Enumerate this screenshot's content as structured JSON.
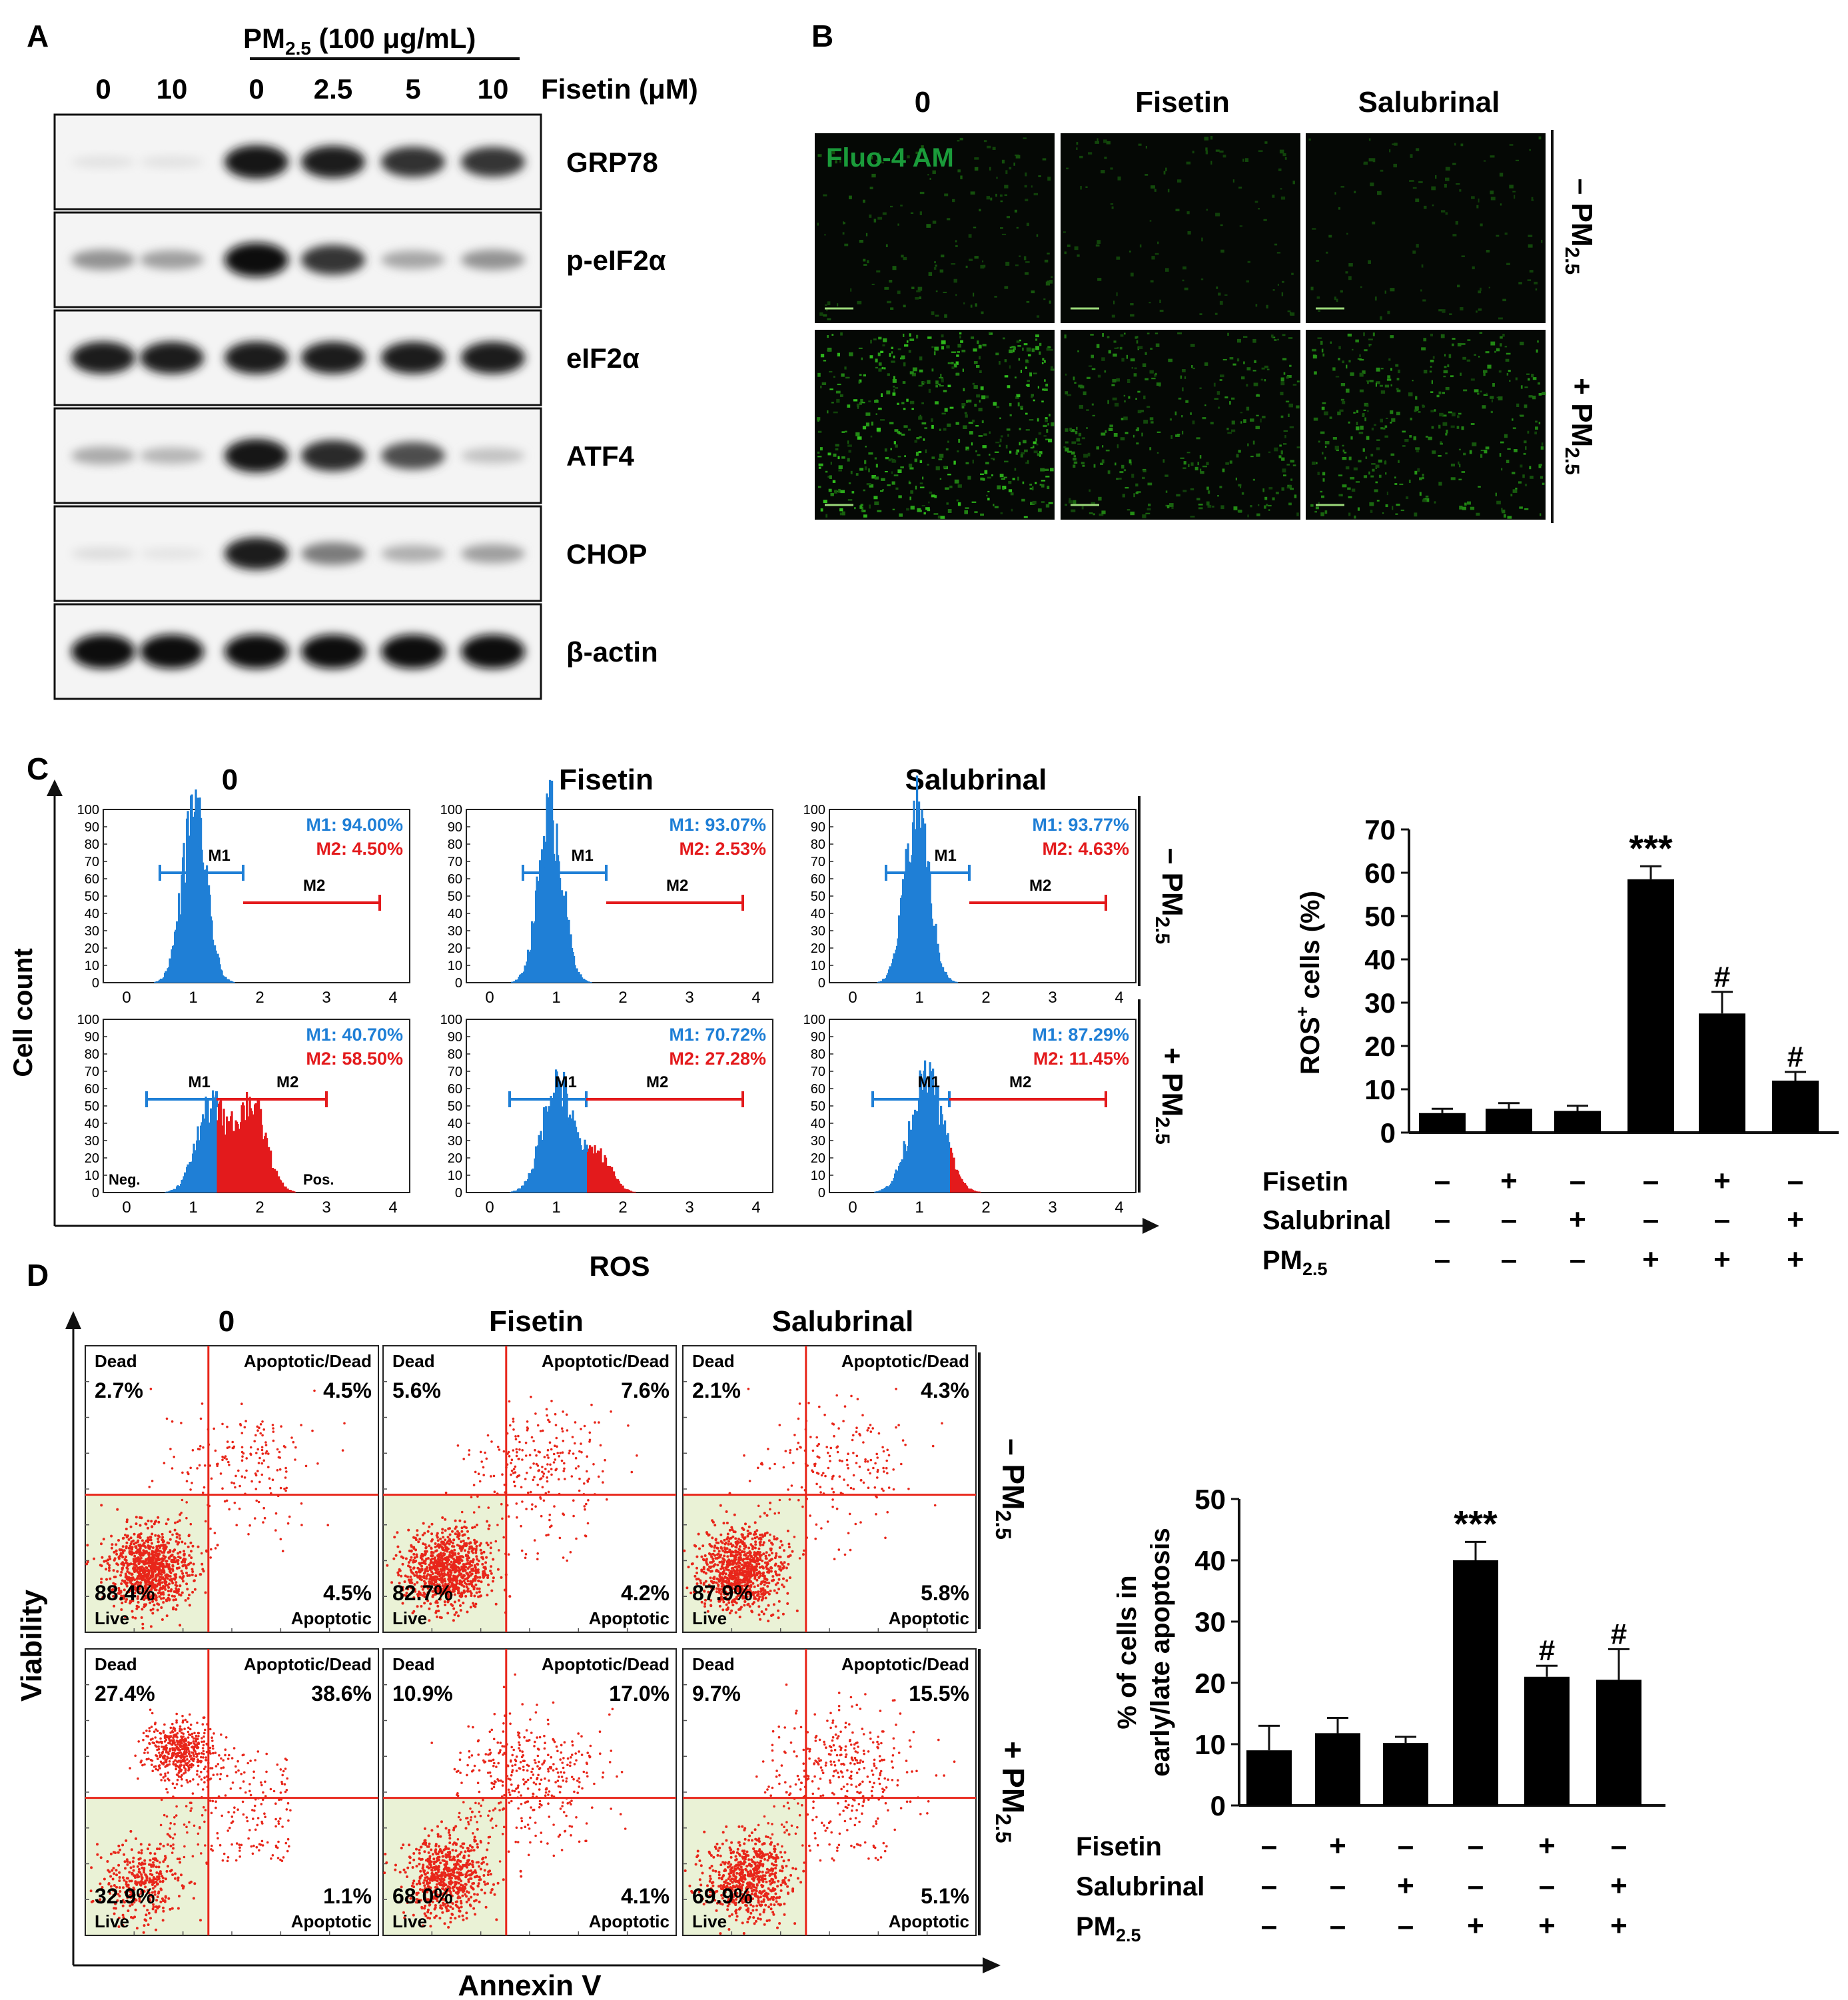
{
  "panels": {
    "A": {
      "letter": "A",
      "pm_label": "PM",
      "pm_sub": "2.5",
      "pm_conc": " (100 μg/mL)",
      "dose_label": "Fisetin (μM)",
      "lanes": [
        "0",
        "10",
        "0",
        "2.5",
        "5",
        "10"
      ],
      "blots": [
        {
          "label": "GRP78",
          "intensities": [
            0.06,
            0.06,
            0.95,
            0.9,
            0.82,
            0.8
          ]
        },
        {
          "label": "p-eIF2α",
          "intensities": [
            0.4,
            0.35,
            0.98,
            0.8,
            0.32,
            0.4
          ]
        },
        {
          "label": "eIF2α",
          "intensities": [
            0.9,
            0.9,
            0.92,
            0.9,
            0.9,
            0.9
          ]
        },
        {
          "label": "ATF4",
          "intensities": [
            0.3,
            0.25,
            0.95,
            0.85,
            0.7,
            0.2
          ]
        },
        {
          "label": "CHOP",
          "intensities": [
            0.08,
            0.05,
            0.9,
            0.5,
            0.28,
            0.35
          ]
        },
        {
          "label": "β-actin",
          "intensities": [
            0.98,
            0.98,
            0.98,
            0.98,
            0.98,
            0.98
          ]
        }
      ]
    },
    "B": {
      "letter": "B",
      "columns": [
        "0",
        "Fisetin",
        "Salubrinal"
      ],
      "stain_label": "Fluo-4 AM",
      "rows": [
        {
          "sign": "–",
          "label": "PM",
          "sub": "2.5",
          "brightness": [
            0.2,
            0.1,
            0.1
          ]
        },
        {
          "sign": "+",
          "label": "PM",
          "sub": "2.5",
          "brightness": [
            0.9,
            0.55,
            0.6
          ]
        }
      ]
    },
    "C": {
      "letter": "C",
      "columns": [
        "0",
        "Fisetin",
        "Salubrinal"
      ],
      "y_axis_label": "Cell count",
      "x_axis_label": "ROS",
      "y_ticks": [
        "0",
        "10",
        "20",
        "30",
        "40",
        "50",
        "60",
        "70",
        "80",
        "90",
        "100"
      ],
      "x_ticks": [
        "0",
        "1",
        "2",
        "3",
        "4"
      ],
      "gate_m1": "M1",
      "gate_m2": "M2",
      "neg_label": "Neg.",
      "pos_label": "Pos.",
      "row_labels": [
        {
          "sign": "–",
          "label": "PM",
          "sub": "2.5"
        },
        {
          "sign": "+",
          "label": "PM",
          "sub": "2.5"
        }
      ],
      "histograms": [
        {
          "m1": "M1: 94.00%",
          "m2": "M2: 4.50%",
          "peak": 1.0,
          "width": 0.18,
          "m2_fraction": 0.045
        },
        {
          "m1": "M1: 93.07%",
          "m2": "M2: 2.53%",
          "peak": 0.9,
          "width": 0.18,
          "m2_fraction": 0.025
        },
        {
          "m1": "M1: 93.77%",
          "m2": "M2: 4.63%",
          "peak": 0.95,
          "width": 0.18,
          "m2_fraction": 0.046
        },
        {
          "m1": "M1: 40.70%",
          "m2": "M2: 58.50%",
          "peak": 1.3,
          "width": 0.35,
          "m2_fraction": 0.585
        },
        {
          "m1": "M1: 70.72%",
          "m2": "M2: 27.28%",
          "peak": 1.05,
          "width": 0.28,
          "m2_fraction": 0.273
        },
        {
          "m1": "M1: 87.29%",
          "m2": "M2: 11.45%",
          "peak": 1.1,
          "width": 0.25,
          "m2_fraction": 0.115
        }
      ],
      "colors": {
        "m1": "#1f7fd6",
        "m2": "#e31a1c"
      }
    },
    "D": {
      "letter": "D",
      "columns": [
        "0",
        "Fisetin",
        "Salubrinal"
      ],
      "y_axis_label": "Viability",
      "x_axis_label": "Annexin V",
      "quadrant_labels": {
        "ul": "Dead",
        "ur": "Apoptotic/Dead",
        "ll": "Live",
        "lr": "Apoptotic"
      },
      "row_labels": [
        {
          "sign": "–",
          "label": "PM",
          "sub": "2.5"
        },
        {
          "sign": "+",
          "label": "PM",
          "sub": "2.5"
        }
      ],
      "plots": [
        {
          "dead": "2.7%",
          "apo_dead": "4.5%",
          "live": "88.4%",
          "apo": "4.5%"
        },
        {
          "dead": "5.6%",
          "apo_dead": "7.6%",
          "live": "82.7%",
          "apo": "4.2%"
        },
        {
          "dead": "2.1%",
          "apo_dead": "4.3%",
          "live": "87.9%",
          "apo": "5.8%"
        },
        {
          "dead": "27.4%",
          "apo_dead": "38.6%",
          "live": "32.9%",
          "apo": "1.1%"
        },
        {
          "dead": "10.9%",
          "apo_dead": "17.0%",
          "live": "68.0%",
          "apo": "4.1%"
        },
        {
          "dead": "9.7%",
          "apo_dead": "15.5%",
          "live": "69.9%",
          "apo": "5.1%"
        }
      ]
    }
  },
  "chart_data": [
    {
      "type": "bar",
      "panel": "C",
      "ylabel": "ROS",
      "ylabel_sup": "+",
      "ylabel_rest": " cells (%)",
      "ylim": [
        0,
        70
      ],
      "yticks": [
        0,
        10,
        20,
        30,
        40,
        50,
        60,
        70
      ],
      "values": [
        4.5,
        5.5,
        5.0,
        58.5,
        27.5,
        12.0
      ],
      "errors": [
        1.0,
        1.3,
        1.2,
        3.0,
        5.0,
        2.0
      ],
      "annotations": [
        "",
        "",
        "",
        "***",
        "#",
        "#"
      ],
      "treatments": [
        {
          "name": "Fisetin",
          "signs": [
            "–",
            "+",
            "–",
            "–",
            "+",
            "–"
          ]
        },
        {
          "name": "Salubrinal",
          "signs": [
            "–",
            "–",
            "+",
            "–",
            "–",
            "+"
          ]
        },
        {
          "name": "PM",
          "sub": "2.5",
          "signs": [
            "–",
            "–",
            "–",
            "+",
            "+",
            "+"
          ]
        }
      ]
    },
    {
      "type": "bar",
      "panel": "D",
      "ylabel_line1": "% of cells in",
      "ylabel_line2": "early/late apoptosis",
      "ylim": [
        0,
        50
      ],
      "yticks": [
        0,
        10,
        20,
        30,
        40,
        50
      ],
      "values": [
        9.0,
        11.8,
        10.2,
        40.0,
        21.0,
        20.5
      ],
      "errors": [
        4.0,
        2.5,
        1.0,
        3.0,
        1.8,
        5.0
      ],
      "annotations": [
        "",
        "",
        "",
        "***",
        "#",
        "#"
      ],
      "treatments": [
        {
          "name": "Fisetin",
          "signs": [
            "–",
            "+",
            "–",
            "–",
            "+",
            "–"
          ]
        },
        {
          "name": "Salubrinal",
          "signs": [
            "–",
            "–",
            "+",
            "–",
            "–",
            "+"
          ]
        },
        {
          "name": "PM",
          "sub": "2.5",
          "signs": [
            "–",
            "–",
            "–",
            "+",
            "+",
            "+"
          ]
        }
      ]
    }
  ]
}
